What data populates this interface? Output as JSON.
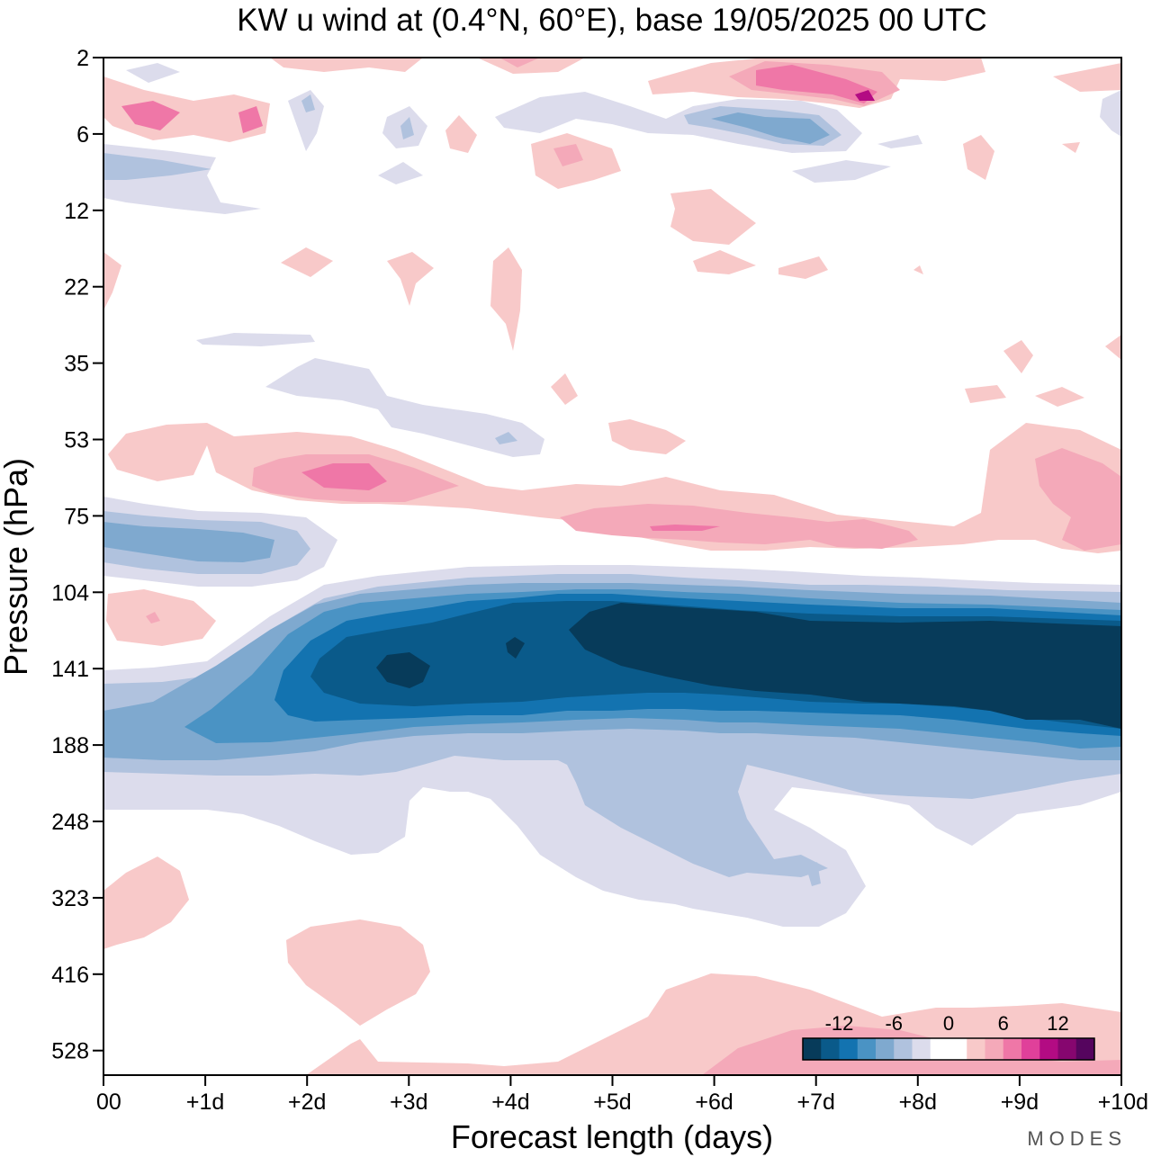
{
  "chart_data": {
    "type": "heatmap",
    "title": "KW u wind at (0.4°N, 60°E),  base 19/05/2025  00 UTC",
    "xlabel": "Forecast length (days)",
    "ylabel": "Pressure (hPa)",
    "x_ticks": [
      "00",
      "+1d",
      "+2d",
      "+3d",
      "+4d",
      "+5d",
      "+6d",
      "+7d",
      "+8d",
      "+9d",
      "+10d"
    ],
    "x_range": [
      0,
      10
    ],
    "y_ticks": [
      "2",
      "6",
      "12",
      "22",
      "35",
      "53",
      "75",
      "104",
      "141",
      "188",
      "248",
      "323",
      "416",
      "528"
    ],
    "y_scale": "log",
    "colorbar": {
      "tick_labels": [
        "-12",
        "-6",
        "0",
        "6",
        "12"
      ],
      "colors": [
        "#073b5a",
        "#0a5a8a",
        "#1373b0",
        "#4a93c4",
        "#7fa9cf",
        "#b0c2de",
        "#dcdcec",
        "#ffffff",
        "#ffffff",
        "#f8c9c9",
        "#f4a9b9",
        "#ef77a7",
        "#e0409a",
        "#b30b83",
        "#86066f",
        "#55055e"
      ],
      "placement": "bottom-right"
    },
    "features": [
      {
        "sign": "easterly",
        "value_min": -15,
        "days": [
          1,
          10
        ],
        "pressure_hPa": [
          104,
          248
        ],
        "note": "core 120-180 hPa, strengthening after +5d"
      },
      {
        "sign": "easterly",
        "value_min": -9,
        "days": [
          0,
          2.2
        ],
        "pressure_hPa": [
          70,
          100
        ]
      },
      {
        "sign": "westerly",
        "value_max": 9,
        "days": [
          0,
          10
        ],
        "pressure_hPa": [
          53,
          85
        ]
      },
      {
        "sign": "westerly",
        "value_max": 9,
        "days": [
          6.5,
          8.5
        ],
        "pressure_hPa": [
          2,
          5
        ]
      },
      {
        "sign": "easterly",
        "value_min": -6,
        "days": [
          5.5,
          7.5
        ],
        "pressure_hPa": [
          5,
          8
        ]
      },
      {
        "sign": "westerly",
        "value_max": 6,
        "days": [
          4,
          10
        ],
        "pressure_hPa": [
          416,
          600
        ]
      }
    ]
  },
  "watermark": "MODES"
}
